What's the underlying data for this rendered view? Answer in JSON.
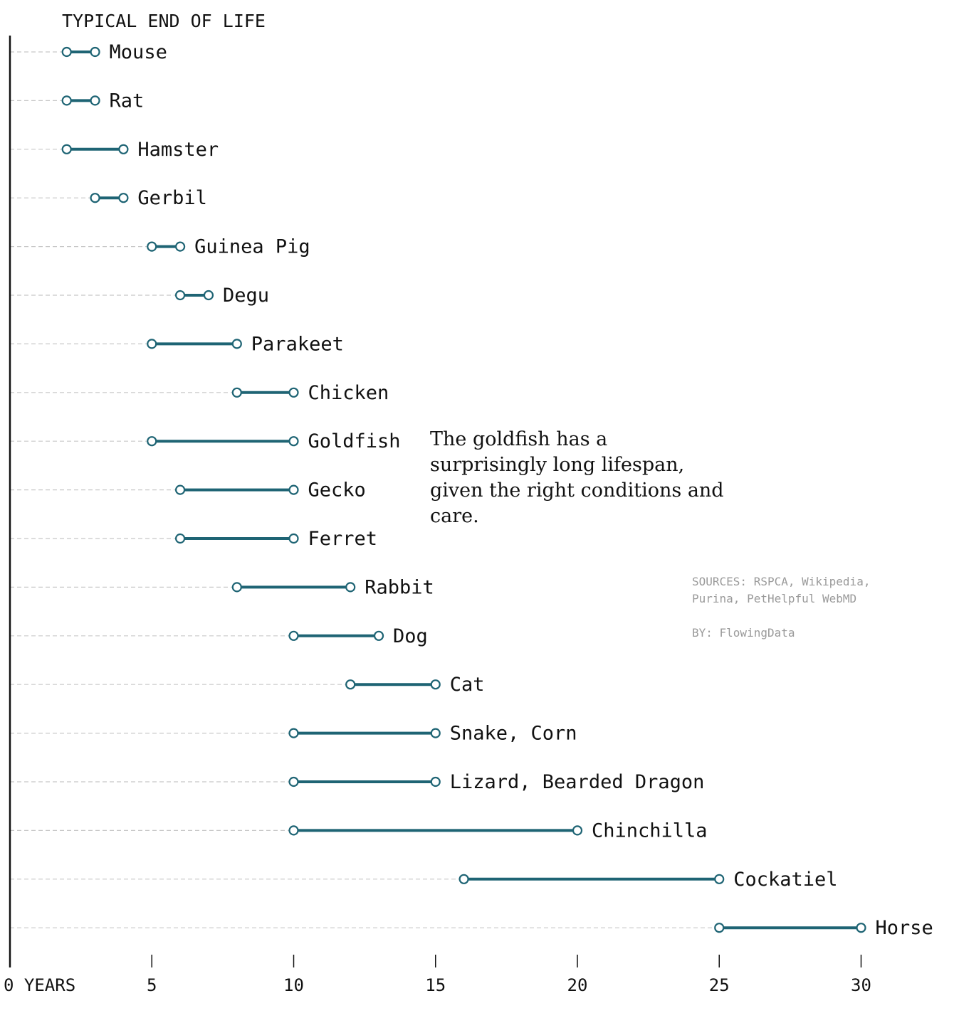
{
  "chart_data": {
    "type": "dumbbell",
    "title": "TYPICAL END OF LIFE",
    "xlabel": "YEARS",
    "xlim": [
      0,
      32
    ],
    "ticks": [
      0,
      5,
      10,
      15,
      20,
      25,
      30
    ],
    "tick_labels": [
      "0 YEARS",
      "5",
      "10",
      "15",
      "20",
      "25",
      "30"
    ],
    "series": [
      {
        "name": "Mouse",
        "min": 2,
        "max": 3
      },
      {
        "name": "Rat",
        "min": 2,
        "max": 3
      },
      {
        "name": "Hamster",
        "min": 2,
        "max": 4
      },
      {
        "name": "Gerbil",
        "min": 3,
        "max": 4
      },
      {
        "name": "Guinea Pig",
        "min": 5,
        "max": 6
      },
      {
        "name": "Degu",
        "min": 6,
        "max": 7
      },
      {
        "name": "Parakeet",
        "min": 5,
        "max": 8
      },
      {
        "name": "Chicken",
        "min": 8,
        "max": 10
      },
      {
        "name": "Goldfish",
        "min": 5,
        "max": 10
      },
      {
        "name": "Gecko",
        "min": 6,
        "max": 10
      },
      {
        "name": "Ferret",
        "min": 6,
        "max": 10
      },
      {
        "name": "Rabbit",
        "min": 8,
        "max": 12
      },
      {
        "name": "Dog",
        "min": 10,
        "max": 13
      },
      {
        "name": "Cat",
        "min": 12,
        "max": 15
      },
      {
        "name": "Snake, Corn",
        "min": 10,
        "max": 15
      },
      {
        "name": "Lizard, Bearded Dragon",
        "min": 10,
        "max": 15
      },
      {
        "name": "Chinchilla",
        "min": 10,
        "max": 20
      },
      {
        "name": "Cockatiel",
        "min": 16,
        "max": 25
      },
      {
        "name": "Horse",
        "min": 25,
        "max": 30
      }
    ],
    "colors": {
      "line": "#1e6474",
      "gridline": "#c8c8c8",
      "axis": "#111111"
    }
  },
  "annotation": "The goldfish has a surprisingly long lifespan, given the right conditions and care.",
  "credits": {
    "sources": "SOURCES: RSPCA, Wikipedia,\nPurina, PetHelpful WebMD",
    "by": "BY: FlowingData"
  }
}
